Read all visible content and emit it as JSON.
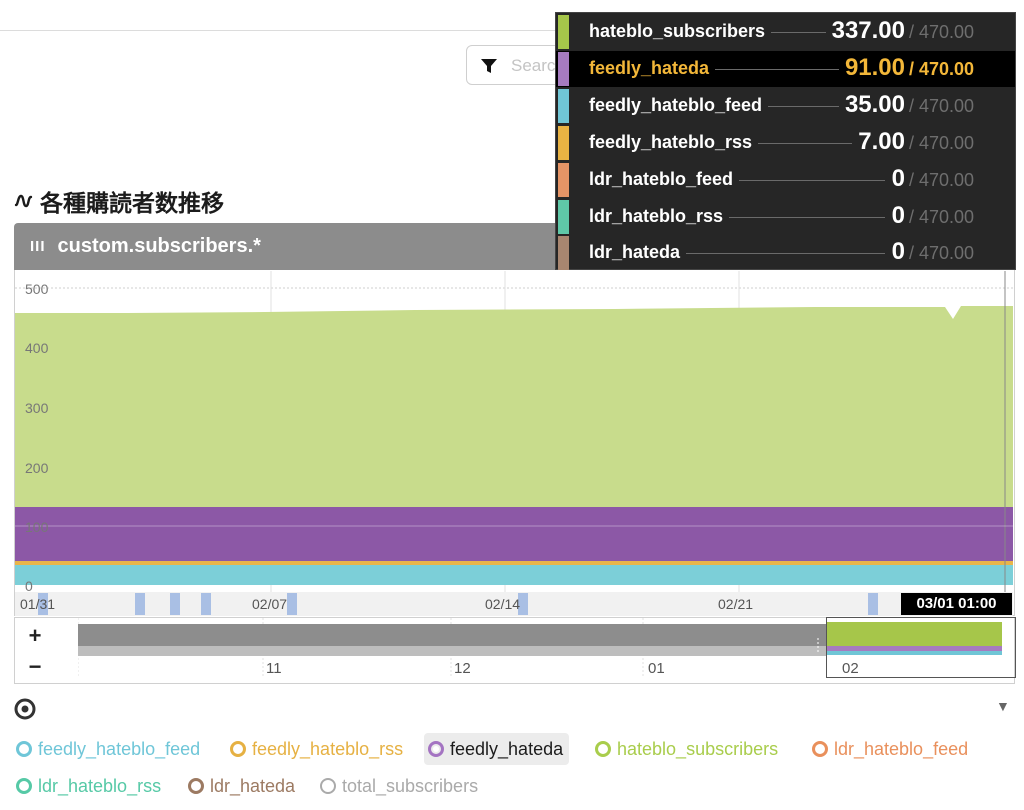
{
  "search": {
    "placeholder": "Search"
  },
  "section": {
    "title": "各種購読者数推移"
  },
  "panel": {
    "title": "custom.subscribers.*"
  },
  "chart": {
    "y_ticks": [
      "500",
      "400",
      "300",
      "200",
      "100",
      "0"
    ],
    "x_ticks": [
      "01/31",
      "02/07",
      "02/14",
      "02/21"
    ],
    "cursor_label": "03/01 01:00",
    "colors": {
      "hateblo_subscribers": "#c8dc8c",
      "feedly_hateda": "#8c58a6",
      "feedly_hateblo_feed": "#7ccfd8",
      "feedly_hateblo_rss": "#e9b54a"
    }
  },
  "overview": {
    "zoom_in": "+",
    "zoom_out": "−",
    "ticks": [
      "11",
      "12",
      "01",
      "02"
    ]
  },
  "tooltip": {
    "rows": [
      {
        "name": "hateblo_subscribers",
        "value": "337.00",
        "total": "/ 470.00",
        "color": "#a6c64a"
      },
      {
        "name": "feedly_hateda",
        "value": "91.00",
        "total": "/ 470.00",
        "color": "#a67bc0",
        "highlight": true
      },
      {
        "name": "feedly_hateblo_feed",
        "value": "35.00",
        "total": "/ 470.00",
        "color": "#70c6d6"
      },
      {
        "name": "feedly_hateblo_rss",
        "value": "7.00",
        "total": "/ 470.00",
        "color": "#e9b343"
      },
      {
        "name": "ldr_hateblo_feed",
        "value": "0",
        "total": "/ 470.00",
        "color": "#e59466"
      },
      {
        "name": "ldr_hateblo_rss",
        "value": "0",
        "total": "/ 470.00",
        "color": "#5fc8a8"
      },
      {
        "name": "ldr_hateda",
        "value": "0",
        "total": "/ 470.00",
        "color": "#a88670"
      }
    ]
  },
  "legend": {
    "items": [
      {
        "label": "feedly_hateblo_feed",
        "color": "#6fc6d8"
      },
      {
        "label": "feedly_hateblo_rss",
        "color": "#e6b143"
      },
      {
        "label": "feedly_hateda",
        "color": "#a474c2",
        "active": true
      },
      {
        "label": "hateblo_subscribers",
        "color": "#a9cd4c"
      },
      {
        "label": "ldr_hateblo_feed",
        "color": "#e9905c"
      },
      {
        "label": "ldr_hateblo_rss",
        "color": "#56c9a6"
      },
      {
        "label": "ldr_hateda",
        "color": "#9c7a62"
      },
      {
        "label": "total_subscribers",
        "color": "#aaaaaa"
      }
    ]
  }
}
